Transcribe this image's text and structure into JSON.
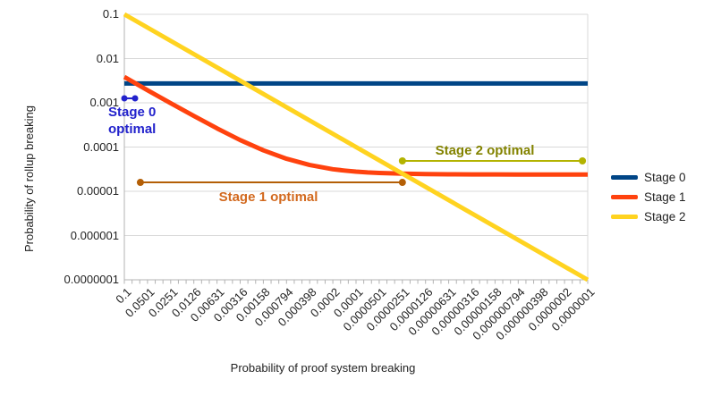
{
  "axes": {
    "x_title": "Probability of proof system breaking",
    "y_title": "Probability of rollup breaking"
  },
  "legend": {
    "entries": [
      {
        "label": "Stage 0",
        "color": "#004586"
      },
      {
        "label": "Stage 1",
        "color": "#ff420e"
      },
      {
        "label": "Stage 2",
        "color": "#ffd320"
      }
    ]
  },
  "chart_data": {
    "type": "line",
    "title": "",
    "xlabel": "Probability of proof system breaking",
    "ylabel": "Probability of rollup breaking",
    "x_scale": "log",
    "y_scale": "log",
    "xlim": [
      0.1,
      1e-07
    ],
    "ylim": [
      0.1,
      1e-07
    ],
    "grid": "horizontal",
    "grid_color": "#d9d9d9",
    "axis_color": "#b3b3b3",
    "legend_position": "right",
    "x_tick_labels": [
      "0.1",
      "0.0501",
      "0.0251",
      "0.0126",
      "0.00631",
      "0.00316",
      "0.00158",
      "0.000794",
      "0.000398",
      "0.0002",
      "0.0001",
      "0.0000501",
      "0.0000251",
      "0.0000126",
      "0.00000631",
      "0.00000316",
      "0.00000158",
      "0.000000794",
      "0.000000398",
      "0.0000002",
      "0.0000001"
    ],
    "y_tick_labels": [
      "0.1",
      "0.01",
      "0.001",
      "0.0001",
      "0.00001",
      "0.000001",
      "0.0000001"
    ],
    "series": [
      {
        "name": "Stage 0",
        "color": "#004586",
        "points": [
          [
            0.1,
            0.00273
          ],
          [
            1e-07,
            0.00273
          ]
        ]
      },
      {
        "name": "Stage 1",
        "color": "#ff420e",
        "points": [
          [
            0.1,
            0.00383
          ],
          [
            0.0501,
            0.00193
          ],
          [
            0.0251,
            0.00098
          ],
          [
            0.0126,
            0.000504
          ],
          [
            0.00631,
            0.000264
          ],
          [
            0.00316,
            0.000144
          ],
          [
            0.00158,
            8.42e-05
          ],
          [
            0.000794,
            5.43e-05
          ],
          [
            0.000398,
            3.92e-05
          ],
          [
            0.0002,
            3.16e-05
          ],
          [
            0.000141,
            2.94e-05
          ],
          [
            0.0001,
            2.78e-05
          ],
          [
            7.08e-05,
            2.67e-05
          ],
          [
            5.01e-05,
            2.59e-05
          ],
          [
            2.51e-05,
            2.5e-05
          ],
          [
            1.26e-05,
            2.45e-05
          ],
          [
            6.31e-06,
            2.42e-05
          ],
          [
            3.16e-06,
            2.41e-05
          ],
          [
            1.58e-06,
            2.41e-05
          ],
          [
            7.94e-07,
            2.4e-05
          ],
          [
            3.98e-07,
            2.4e-05
          ],
          [
            2e-07,
            2.4e-05
          ],
          [
            1e-07,
            2.4e-05
          ]
        ]
      },
      {
        "name": "Stage 2",
        "color": "#ffd320",
        "points": [
          [
            0.1,
            0.1
          ],
          [
            1e-07,
            1e-07
          ]
        ]
      }
    ],
    "annotations": [
      {
        "id": "stage0-optimal",
        "label_lines": [
          "Stage 0",
          "optimal"
        ],
        "text_color": "#2222cc",
        "line_color": "#2222cc",
        "segment": {
          "x1": 0.1,
          "x2": 0.0726,
          "y": 0.00126
        },
        "dot_radius": 3.5
      },
      {
        "id": "stage1-optimal",
        "label_lines": [
          "Stage 1 optimal"
        ],
        "text_color": "#d2691e",
        "line_color": "#b45f06",
        "segment": {
          "x1": 0.062,
          "x2": 2.51e-05,
          "y": 1.59e-05
        },
        "dot_radius": 4
      },
      {
        "id": "stage2-optimal",
        "label_lines": [
          "Stage 2 optimal"
        ],
        "text_color": "#838300",
        "line_color": "#b3b300",
        "segment": {
          "x1": 2.51e-05,
          "x2": 1.17e-07,
          "y": 4.86e-05
        },
        "dot_radius": 4
      }
    ],
    "annotation_label_positions": [
      {
        "id": "stage0-optimal",
        "left": 121,
        "top": 116,
        "align": "left"
      },
      {
        "id": "stage1-optimal",
        "left": 300,
        "top": 211,
        "align": "center"
      },
      {
        "id": "stage2-optimal",
        "left": 542,
        "top": 159,
        "align": "center"
      }
    ]
  }
}
